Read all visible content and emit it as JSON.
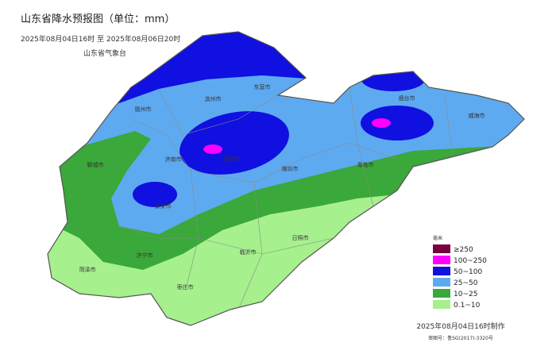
{
  "header": {
    "title": "山东省降水预报图（单位：mm）",
    "period": "2025年08月04日16时  至  2025年08月06日20时",
    "issuer": "山东省气象台"
  },
  "cities": [
    "德州市",
    "滨州市",
    "东营市",
    "烟台市",
    "威海市",
    "聊城市",
    "济南市",
    "淄博市",
    "潍坊市",
    "青岛市",
    "泰安市",
    "济宁市",
    "临沂市",
    "日照市",
    "菏泽市",
    "枣庄市"
  ],
  "legend": {
    "title": "毫米",
    "items": [
      {
        "label": "≥250",
        "color": "#7a0040"
      },
      {
        "label": "100~250",
        "color": "#ff00ff"
      },
      {
        "label": "50~100",
        "color": "#1010e0"
      },
      {
        "label": "25~50",
        "color": "#5eaaf0"
      },
      {
        "label": "10~25",
        "color": "#3aa83a"
      },
      {
        "label": "0.1~10",
        "color": "#a6f08e"
      }
    ]
  },
  "footer": {
    "made": "2025年08月04日16时制作",
    "approval": "审图号：鲁SG(2017)-3320号"
  }
}
